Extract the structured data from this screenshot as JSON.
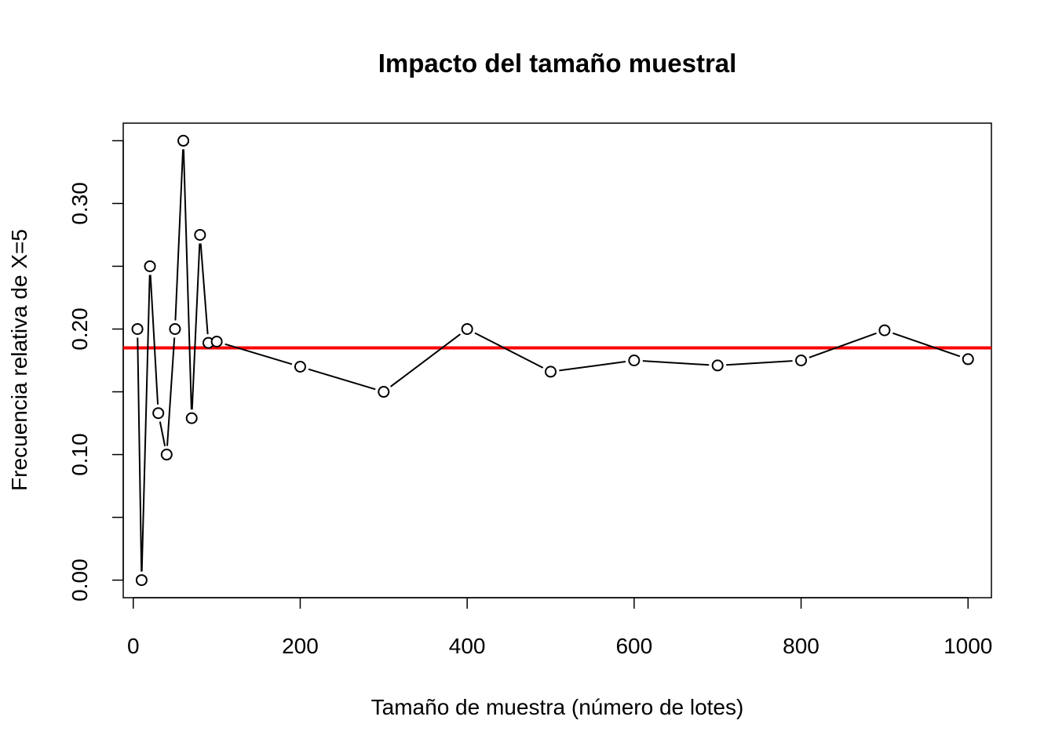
{
  "chart_data": {
    "type": "line",
    "title": "Impacto del tamaño muestral",
    "xlabel": "Tamaño de muestra (número de lotes)",
    "ylabel": "Frecuencia relativa de X=5",
    "xlim": [
      -12,
      1028
    ],
    "ylim": [
      -0.014,
      0.364
    ],
    "xticks": [
      0,
      200,
      400,
      600,
      800,
      1000
    ],
    "xtick_labels": [
      "0",
      "200",
      "400",
      "600",
      "800",
      "1000"
    ],
    "yticks": [
      0.0,
      0.05,
      0.1,
      0.15,
      0.2,
      0.25,
      0.3,
      0.35
    ],
    "ytick_labels": [
      "0.00",
      "",
      "0.10",
      "",
      "0.20",
      "",
      "0.30",
      ""
    ],
    "grid": false,
    "series": [
      {
        "style": "both",
        "marker": "open-circle",
        "color": "#000000",
        "x": [
          5,
          10,
          20,
          30,
          40,
          50,
          60,
          70,
          80,
          90,
          100,
          200,
          300,
          400,
          500,
          600,
          700,
          800,
          900,
          1000
        ],
        "y": [
          0.2,
          0.0,
          0.25,
          0.133,
          0.1,
          0.2,
          0.35,
          0.129,
          0.275,
          0.189,
          0.19,
          0.17,
          0.15,
          0.2,
          0.166,
          0.175,
          0.171,
          0.175,
          0.199,
          0.176
        ]
      }
    ],
    "reference_line": {
      "orientation": "horizontal",
      "y": 0.185,
      "color": "#ff0000"
    }
  }
}
